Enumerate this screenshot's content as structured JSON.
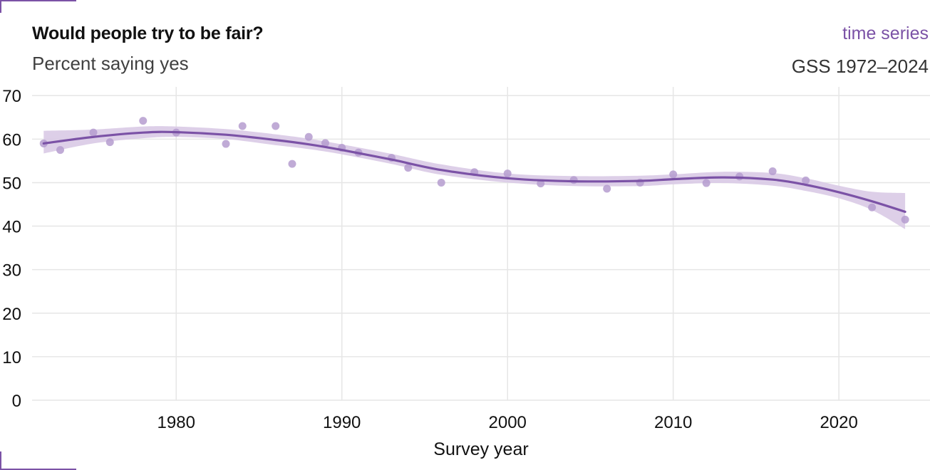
{
  "header": {
    "title": "Would people try to be fair?",
    "subtitle": "Percent saying yes",
    "tag": "time series",
    "source": "GSS 1972–2024"
  },
  "colors": {
    "accent": "#7b52a6",
    "points": "#b59ccf",
    "band": "#d9cae6",
    "grid": "#e6e6e6"
  },
  "chart_data": {
    "type": "scatter",
    "title": "Would people try to be fair?",
    "subtitle": "Percent saying yes",
    "xlabel": "Survey year",
    "ylabel": "",
    "xlim": [
      1971.3,
      2025.5
    ],
    "ylim": [
      0,
      72
    ],
    "xticks": [
      1980,
      1990,
      2000,
      2010,
      2020
    ],
    "yticks": [
      0,
      10,
      20,
      30,
      40,
      50,
      60,
      70
    ],
    "grid": true,
    "legend": "none",
    "points": {
      "x": [
        1972,
        1973,
        1975,
        1976,
        1978,
        1980,
        1983,
        1984,
        1986,
        1987,
        1988,
        1989,
        1990,
        1991,
        1993,
        1994,
        1996,
        1998,
        2000,
        2002,
        2004,
        2006,
        2008,
        2010,
        2012,
        2014,
        2016,
        2018,
        2022,
        2024
      ],
      "y": [
        59.0,
        57.5,
        61.5,
        59.3,
        64.2,
        61.5,
        58.9,
        63.0,
        63.0,
        54.3,
        60.5,
        59.1,
        58.0,
        56.9,
        55.7,
        53.4,
        50.0,
        52.4,
        52.1,
        49.8,
        50.6,
        48.6,
        50.0,
        51.9,
        49.9,
        51.4,
        52.6,
        50.5,
        44.3,
        41.5
      ]
    },
    "trend": {
      "x": [
        1972,
        1975,
        1978,
        1980,
        1983,
        1986,
        1988,
        1990,
        1993,
        1996,
        2000,
        2004,
        2008,
        2010,
        2013,
        2016,
        2018,
        2020,
        2022,
        2024
      ],
      "y": [
        59.0,
        60.5,
        61.5,
        61.6,
        61.0,
        59.8,
        58.8,
        57.5,
        55.3,
        52.9,
        51.0,
        50.3,
        50.4,
        50.8,
        51.2,
        50.7,
        49.5,
        47.8,
        45.7,
        43.3
      ],
      "lower": [
        56.7,
        59.0,
        60.2,
        60.5,
        60.0,
        58.6,
        57.7,
        56.5,
        54.3,
        51.8,
        50.0,
        49.2,
        49.2,
        49.6,
        49.9,
        49.3,
        48.1,
        46.4,
        43.7,
        39.3
      ],
      "upper": [
        61.9,
        62.2,
        62.9,
        62.9,
        62.3,
        61.1,
        60.1,
        58.8,
        56.6,
        54.2,
        52.1,
        51.5,
        51.6,
        51.9,
        52.5,
        52.2,
        51.0,
        49.3,
        47.9,
        47.6
      ]
    }
  }
}
